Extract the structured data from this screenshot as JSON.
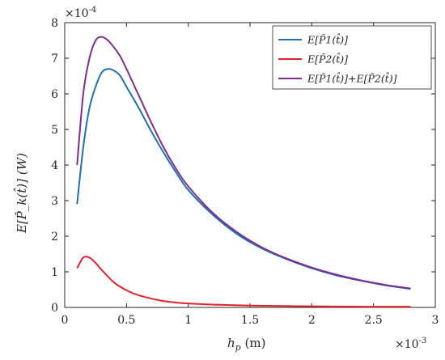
{
  "chart_data": {
    "type": "line",
    "xlabel": "h_p (m)",
    "xlabel_parts": {
      "main": "h",
      "sub": "p",
      "unit": " (m)"
    },
    "ylabel": "E[P̂_k(t̂)] (W)",
    "x_multiplier": "×10^-3",
    "y_multiplier": "×10^-4",
    "x_multiplier_parts": {
      "base": "×10",
      "exp": "-3"
    },
    "y_multiplier_parts": {
      "base": "×10",
      "exp": "-4"
    },
    "xlim": [
      0,
      3
    ],
    "ylim": [
      0,
      8
    ],
    "x_ticks": [
      0,
      0.5,
      1,
      1.5,
      2,
      2.5,
      3
    ],
    "x_tick_labels": [
      "0",
      "0.5",
      "1",
      "1.5",
      "2",
      "2.5",
      "3"
    ],
    "y_ticks": [
      0,
      1,
      2,
      3,
      4,
      5,
      6,
      7,
      8
    ],
    "y_tick_labels": [
      "0",
      "1",
      "2",
      "3",
      "4",
      "5",
      "6",
      "7",
      "8"
    ],
    "grid": false,
    "legend_position": "top-right",
    "series": [
      {
        "name": "E[P̂1(t̂)]",
        "color": "#1f6fb4",
        "x": [
          0.1,
          0.15,
          0.2,
          0.25,
          0.3,
          0.35,
          0.4,
          0.45,
          0.5,
          0.6,
          0.7,
          0.8,
          0.9,
          1.0,
          1.2,
          1.4,
          1.6,
          1.8,
          2.0,
          2.2,
          2.4,
          2.6,
          2.8
        ],
        "y": [
          2.9,
          4.5,
          5.6,
          6.2,
          6.6,
          6.7,
          6.65,
          6.5,
          6.2,
          5.6,
          4.95,
          4.35,
          3.8,
          3.3,
          2.6,
          2.05,
          1.65,
          1.35,
          1.1,
          0.9,
          0.75,
          0.62,
          0.52
        ]
      },
      {
        "name": "E[P̂2(t̂)]",
        "color": "#e0222a",
        "x": [
          0.1,
          0.15,
          0.2,
          0.25,
          0.3,
          0.4,
          0.5,
          0.6,
          0.8,
          1.0,
          1.2,
          1.5,
          2.0,
          2.5,
          2.8
        ],
        "y": [
          1.1,
          1.4,
          1.4,
          1.25,
          1.05,
          0.7,
          0.48,
          0.34,
          0.18,
          0.11,
          0.08,
          0.05,
          0.03,
          0.02,
          0.02
        ]
      },
      {
        "name": "E[P̂1(t̂)]+E[P̂2(t̂)]",
        "color": "#7e2f8e",
        "x": [
          0.1,
          0.15,
          0.2,
          0.25,
          0.3,
          0.35,
          0.4,
          0.45,
          0.5,
          0.6,
          0.7,
          0.8,
          0.9,
          1.0,
          1.2,
          1.4,
          1.6,
          1.8,
          2.0,
          2.2,
          2.4,
          2.6,
          2.8
        ],
        "y": [
          4.0,
          6.0,
          7.0,
          7.5,
          7.6,
          7.5,
          7.3,
          7.05,
          6.7,
          5.95,
          5.2,
          4.5,
          3.9,
          3.4,
          2.65,
          2.1,
          1.68,
          1.37,
          1.12,
          0.92,
          0.76,
          0.63,
          0.53
        ]
      }
    ],
    "legend": [
      {
        "main": "E[",
        "p": "P",
        "hat": "^",
        "sub": "1",
        "rest": "(t̂)]"
      },
      {
        "main": "E[",
        "p": "P",
        "hat": "^",
        "sub": "2",
        "rest": "(t̂)]"
      },
      {
        "main": "E[P̂",
        "sub": "1",
        "mid": "(t̂)]+E[P̂",
        "sub2": "2",
        "rest": "(t̂)]"
      }
    ]
  }
}
